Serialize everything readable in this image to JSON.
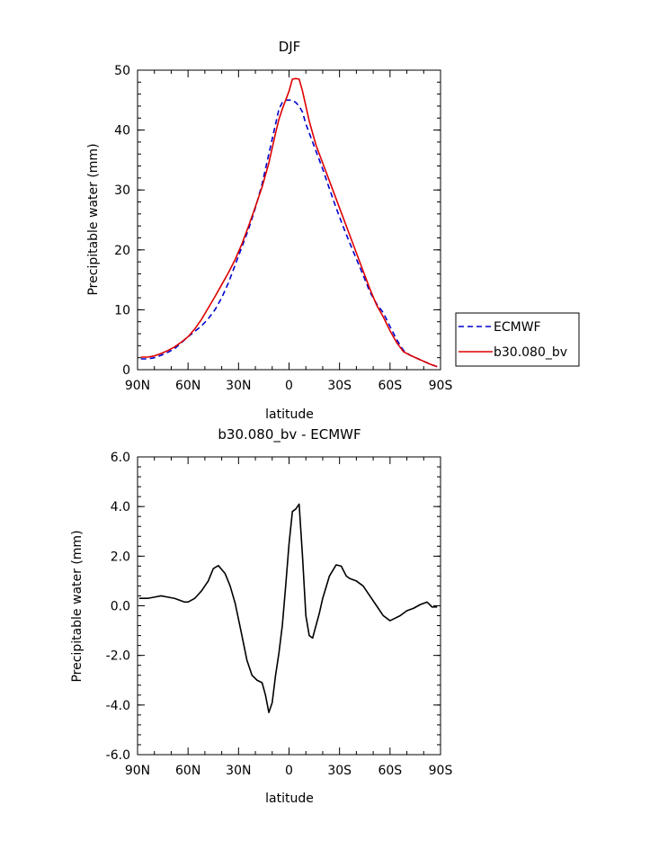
{
  "chart_data": [
    {
      "type": "line",
      "title": "DJF",
      "xlabel": "latitude",
      "ylabel": "Precipitable water (mm)",
      "xlim": [
        -90,
        90
      ],
      "ylim": [
        0,
        50
      ],
      "xticks": [
        -90,
        -60,
        -30,
        0,
        30,
        60,
        90
      ],
      "xtick_labels": [
        "90N",
        "60N",
        "30N",
        "0",
        "30S",
        "60S",
        "90S"
      ],
      "yticks": [
        0,
        10,
        20,
        30,
        40,
        50
      ],
      "ytick_labels": [
        "0",
        "10",
        "20",
        "30",
        "40",
        "50"
      ],
      "legend_position": "right-bottom-outside",
      "series": [
        {
          "name": "ECMWF",
          "color": "#0000cc",
          "style": "dashed",
          "x": [
            -88,
            -84,
            -80,
            -76,
            -72,
            -68,
            -64,
            -60,
            -56,
            -52,
            -48,
            -44,
            -40,
            -36,
            -32,
            -28,
            -24,
            -20,
            -16,
            -12,
            -8,
            -6,
            -4,
            -2,
            0,
            2,
            4,
            6,
            8,
            10,
            12,
            16,
            20,
            24,
            28,
            32,
            36,
            40,
            44,
            48,
            52,
            56,
            60,
            64,
            68,
            72,
            76,
            80,
            84,
            88
          ],
          "values": [
            1.8,
            1.8,
            2.0,
            2.4,
            2.9,
            3.5,
            4.5,
            5.5,
            6.4,
            7.3,
            8.5,
            10.0,
            12.0,
            14.5,
            17.5,
            20.5,
            23.5,
            27.0,
            31.0,
            36.0,
            41.0,
            43.5,
            44.6,
            45.0,
            45.0,
            45.0,
            44.6,
            44.0,
            43.0,
            41.0,
            39.5,
            36.5,
            33.5,
            30.2,
            27.0,
            24.0,
            21.2,
            18.5,
            15.8,
            13.0,
            11.0,
            9.5,
            7.2,
            5.0,
            3.2,
            2.4,
            1.9,
            1.4,
            0.9,
            0.5
          ]
        },
        {
          "name": "b30.080_bv",
          "color": "#dd0000",
          "style": "solid",
          "x": [
            -88,
            -84,
            -80,
            -76,
            -72,
            -68,
            -64,
            -60,
            -56,
            -52,
            -48,
            -44,
            -40,
            -36,
            -32,
            -28,
            -24,
            -20,
            -16,
            -12,
            -8,
            -6,
            -4,
            -2,
            0,
            2,
            4,
            6,
            8,
            10,
            12,
            16,
            20,
            24,
            28,
            32,
            36,
            40,
            44,
            48,
            52,
            56,
            60,
            64,
            68,
            72,
            76,
            80,
            84,
            88
          ],
          "values": [
            2.1,
            2.1,
            2.3,
            2.7,
            3.2,
            3.8,
            4.6,
            5.5,
            6.8,
            8.4,
            10.3,
            12.2,
            14.2,
            16.2,
            18.4,
            21.0,
            24.0,
            27.2,
            30.5,
            34.5,
            39.5,
            41.8,
            43.5,
            45.0,
            46.5,
            48.5,
            48.6,
            48.5,
            46.5,
            44.0,
            41.5,
            37.5,
            34.5,
            31.5,
            28.5,
            25.5,
            22.5,
            19.5,
            16.5,
            13.5,
            10.8,
            8.8,
            6.5,
            4.5,
            3.0,
            2.4,
            1.9,
            1.4,
            0.9,
            0.5
          ]
        }
      ]
    },
    {
      "type": "line",
      "title": "b30.080_bv - ECMWF",
      "xlabel": "latitude",
      "ylabel": "Precipitable water (mm)",
      "xlim": [
        -90,
        90
      ],
      "ylim": [
        -6,
        6
      ],
      "xticks": [
        -90,
        -60,
        -30,
        0,
        30,
        60,
        90
      ],
      "xtick_labels": [
        "90N",
        "60N",
        "30N",
        "0",
        "30S",
        "60S",
        "90S"
      ],
      "yticks": [
        -6,
        -4,
        -2,
        0,
        2,
        4,
        6
      ],
      "ytick_labels": [
        "-6.0",
        "-4.0",
        "-2.0",
        "0.0",
        "2.0",
        "4.0",
        "6.0"
      ],
      "series": [
        {
          "color": "#000000",
          "style": "solid",
          "x": [
            -89,
            -84,
            -80,
            -76,
            -72,
            -68,
            -64,
            -62,
            -60,
            -56,
            -52,
            -48,
            -45,
            -42,
            -38,
            -35,
            -32,
            -28,
            -25,
            -22,
            -19,
            -16,
            -14,
            -12,
            -10,
            -8,
            -6,
            -4,
            -2,
            0,
            2,
            4,
            6,
            8,
            10,
            12,
            14,
            16,
            18,
            20,
            24,
            28,
            31,
            34,
            36,
            40,
            44,
            48,
            52,
            56,
            60,
            63,
            66,
            70,
            74,
            78,
            82,
            85,
            88
          ],
          "values": [
            0.3,
            0.3,
            0.35,
            0.4,
            0.35,
            0.3,
            0.2,
            0.15,
            0.15,
            0.3,
            0.6,
            1.0,
            1.5,
            1.62,
            1.3,
            0.8,
            0.1,
            -1.2,
            -2.2,
            -2.8,
            -3.0,
            -3.1,
            -3.6,
            -4.3,
            -3.9,
            -2.8,
            -1.9,
            -0.8,
            0.8,
            2.5,
            3.8,
            3.9,
            4.1,
            2.0,
            -0.4,
            -1.2,
            -1.3,
            -0.8,
            -0.3,
            0.3,
            1.2,
            1.65,
            1.6,
            1.2,
            1.1,
            1.0,
            0.8,
            0.4,
            0.0,
            -0.4,
            -0.6,
            -0.5,
            -0.4,
            -0.2,
            -0.1,
            0.05,
            0.15,
            -0.05,
            -0.05
          ]
        }
      ]
    }
  ]
}
